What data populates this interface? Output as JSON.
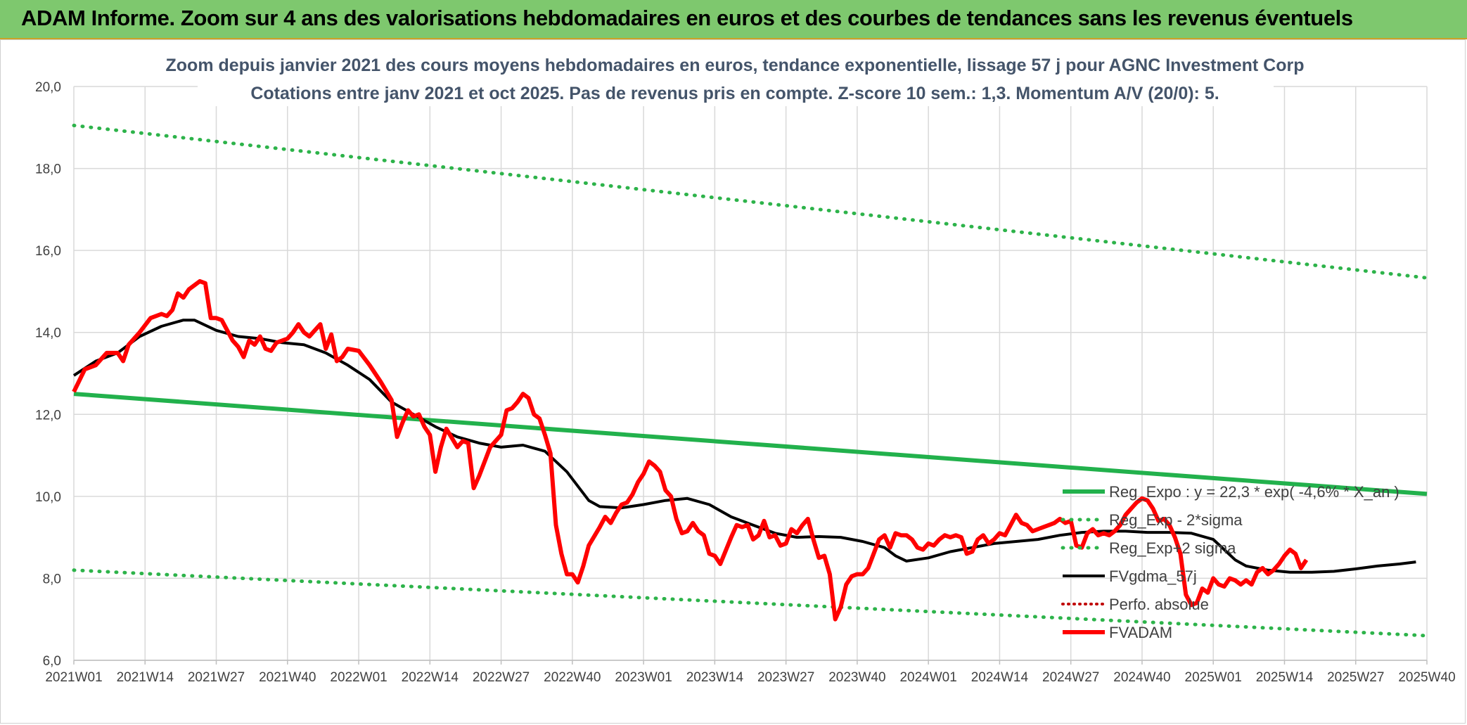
{
  "banner": {
    "title": "ADAM Informe. Zoom sur 4 ans des valorisations hebdomadaires en euros et des courbes de tendances sans les revenus éventuels"
  },
  "colors": {
    "banner_bg": "#7ec86e",
    "green": "#22b14c",
    "dotted_green": "#2db34a",
    "black": "#000000",
    "red": "#ff0000",
    "dotted_red": "#c00000"
  },
  "chart_data": {
    "type": "line",
    "title": "Zoom depuis janvier 2021 des cours moyens hebdomadaires en euros, tendance exponentielle, lissage 57 j pour AGNC Investment Corp",
    "subtitle": "Cotations entre janv 2021 et oct 2025. Pas de revenus pris en compte. Z-score 10 sem.: 1,3. Momentum A/V (20/0): 5.",
    "ylim": [
      6,
      20
    ],
    "y_ticks": [
      "6,0",
      "8,0",
      "10,0",
      "12,0",
      "14,0",
      "16,0",
      "18,0",
      "20,0"
    ],
    "x_ticks": [
      "2021W01",
      "2021W14",
      "2021W27",
      "2021W40",
      "2022W01",
      "2022W14",
      "2022W27",
      "2022W40",
      "2023W01",
      "2023W14",
      "2023W27",
      "2023W40",
      "2024W01",
      "2024W14",
      "2024W27",
      "2024W40",
      "2025W01",
      "2025W14",
      "2025W27",
      "2025W40"
    ],
    "x_range_weeks": [
      0,
      247
    ],
    "grid": true,
    "legend_position": "right",
    "series": [
      {
        "name": "Reg_Expo : y = 22,3 * exp( -4,6% * X_an )",
        "style": "solid-green",
        "points": [
          [
            0,
            12.5
          ],
          [
            247,
            10.06
          ]
        ]
      },
      {
        "name": "Reg_Exp - 2*sigma",
        "style": "dotted-green",
        "points": [
          [
            0,
            8.2
          ],
          [
            247,
            6.6
          ]
        ]
      },
      {
        "name": "Reg_Exp+2 sigma",
        "style": "dotted-green",
        "points": [
          [
            0,
            19.05
          ],
          [
            247,
            15.33
          ]
        ]
      },
      {
        "name": "FVgdma_57j",
        "style": "solid-black",
        "points": [
          [
            0,
            12.95
          ],
          [
            4,
            13.3
          ],
          [
            8,
            13.5
          ],
          [
            12,
            13.9
          ],
          [
            16,
            14.15
          ],
          [
            20,
            14.3
          ],
          [
            22,
            14.3
          ],
          [
            26,
            14.05
          ],
          [
            30,
            13.9
          ],
          [
            34,
            13.85
          ],
          [
            38,
            13.75
          ],
          [
            42,
            13.7
          ],
          [
            46,
            13.5
          ],
          [
            50,
            13.2
          ],
          [
            54,
            12.85
          ],
          [
            58,
            12.3
          ],
          [
            62,
            12.0
          ],
          [
            66,
            11.7
          ],
          [
            70,
            11.45
          ],
          [
            74,
            11.3
          ],
          [
            78,
            11.2
          ],
          [
            82,
            11.25
          ],
          [
            86,
            11.1
          ],
          [
            90,
            10.6
          ],
          [
            94,
            9.9
          ],
          [
            96,
            9.75
          ],
          [
            100,
            9.72
          ],
          [
            104,
            9.8
          ],
          [
            108,
            9.9
          ],
          [
            112,
            9.95
          ],
          [
            116,
            9.8
          ],
          [
            120,
            9.5
          ],
          [
            124,
            9.3
          ],
          [
            128,
            9.1
          ],
          [
            132,
            9.0
          ],
          [
            136,
            9.02
          ],
          [
            140,
            9.0
          ],
          [
            144,
            8.9
          ],
          [
            148,
            8.75
          ],
          [
            150,
            8.55
          ],
          [
            152,
            8.42
          ],
          [
            156,
            8.5
          ],
          [
            160,
            8.65
          ],
          [
            164,
            8.75
          ],
          [
            168,
            8.85
          ],
          [
            172,
            8.9
          ],
          [
            176,
            8.95
          ],
          [
            180,
            9.05
          ],
          [
            184,
            9.12
          ],
          [
            188,
            9.15
          ],
          [
            192,
            9.15
          ],
          [
            196,
            9.12
          ],
          [
            200,
            9.12
          ],
          [
            204,
            9.1
          ],
          [
            208,
            8.95
          ],
          [
            210,
            8.7
          ],
          [
            212,
            8.45
          ],
          [
            214,
            8.3
          ],
          [
            218,
            8.2
          ],
          [
            222,
            8.15
          ],
          [
            226,
            8.15
          ],
          [
            230,
            8.17
          ],
          [
            234,
            8.23
          ],
          [
            238,
            8.3
          ],
          [
            242,
            8.35
          ],
          [
            245,
            8.4
          ]
        ]
      },
      {
        "name": "Perfo. absolue",
        "style": "dotted-red",
        "points": []
      },
      {
        "name": "FVADAM",
        "style": "solid-red",
        "points": [
          [
            0,
            12.55
          ],
          [
            2,
            13.1
          ],
          [
            4,
            13.2
          ],
          [
            6,
            13.5
          ],
          [
            8,
            13.5
          ],
          [
            9,
            13.3
          ],
          [
            10,
            13.7
          ],
          [
            12,
            14.0
          ],
          [
            14,
            14.35
          ],
          [
            16,
            14.45
          ],
          [
            17,
            14.4
          ],
          [
            18,
            14.55
          ],
          [
            19,
            14.95
          ],
          [
            20,
            14.85
          ],
          [
            21,
            15.05
          ],
          [
            22,
            15.15
          ],
          [
            23,
            15.25
          ],
          [
            24,
            15.2
          ],
          [
            25,
            14.35
          ],
          [
            26,
            14.35
          ],
          [
            27,
            14.3
          ],
          [
            28,
            14.05
          ],
          [
            29,
            13.8
          ],
          [
            30,
            13.65
          ],
          [
            31,
            13.4
          ],
          [
            32,
            13.8
          ],
          [
            33,
            13.7
          ],
          [
            34,
            13.9
          ],
          [
            35,
            13.6
          ],
          [
            36,
            13.55
          ],
          [
            37,
            13.75
          ],
          [
            38,
            13.8
          ],
          [
            39,
            13.85
          ],
          [
            40,
            14.0
          ],
          [
            41,
            14.2
          ],
          [
            42,
            14.0
          ],
          [
            43,
            13.9
          ],
          [
            44,
            14.05
          ],
          [
            45,
            14.2
          ],
          [
            46,
            13.6
          ],
          [
            47,
            13.95
          ],
          [
            48,
            13.3
          ],
          [
            49,
            13.4
          ],
          [
            50,
            13.6
          ],
          [
            52,
            13.55
          ],
          [
            54,
            13.2
          ],
          [
            56,
            12.8
          ],
          [
            58,
            12.35
          ],
          [
            59,
            11.45
          ],
          [
            60,
            11.8
          ],
          [
            61,
            12.1
          ],
          [
            62,
            11.95
          ],
          [
            63,
            12.0
          ],
          [
            64,
            11.7
          ],
          [
            65,
            11.5
          ],
          [
            66,
            10.6
          ],
          [
            67,
            11.2
          ],
          [
            68,
            11.65
          ],
          [
            70,
            11.2
          ],
          [
            71,
            11.35
          ],
          [
            72,
            11.3
          ],
          [
            73,
            10.2
          ],
          [
            74,
            10.5
          ],
          [
            76,
            11.2
          ],
          [
            78,
            11.5
          ],
          [
            79,
            12.1
          ],
          [
            80,
            12.15
          ],
          [
            81,
            12.3
          ],
          [
            82,
            12.5
          ],
          [
            83,
            12.4
          ],
          [
            84,
            12.0
          ],
          [
            85,
            11.9
          ],
          [
            86,
            11.5
          ],
          [
            87,
            11.05
          ],
          [
            88,
            9.3
          ],
          [
            89,
            8.6
          ],
          [
            90,
            8.1
          ],
          [
            91,
            8.1
          ],
          [
            92,
            7.9
          ],
          [
            93,
            8.3
          ],
          [
            94,
            8.8
          ],
          [
            96,
            9.25
          ],
          [
            97,
            9.5
          ],
          [
            98,
            9.35
          ],
          [
            99,
            9.6
          ],
          [
            100,
            9.8
          ],
          [
            101,
            9.85
          ],
          [
            102,
            10.05
          ],
          [
            103,
            10.35
          ],
          [
            104,
            10.55
          ],
          [
            105,
            10.85
          ],
          [
            106,
            10.75
          ],
          [
            107,
            10.6
          ],
          [
            108,
            10.15
          ],
          [
            109,
            10.0
          ],
          [
            110,
            9.45
          ],
          [
            111,
            9.1
          ],
          [
            112,
            9.15
          ],
          [
            113,
            9.35
          ],
          [
            114,
            9.15
          ],
          [
            115,
            9.05
          ],
          [
            116,
            8.6
          ],
          [
            117,
            8.55
          ],
          [
            118,
            8.35
          ],
          [
            120,
            9.0
          ],
          [
            121,
            9.3
          ],
          [
            122,
            9.25
          ],
          [
            123,
            9.3
          ],
          [
            124,
            8.95
          ],
          [
            125,
            9.05
          ],
          [
            126,
            9.4
          ],
          [
            127,
            9.0
          ],
          [
            128,
            9.05
          ],
          [
            129,
            8.8
          ],
          [
            130,
            8.85
          ],
          [
            131,
            9.2
          ],
          [
            132,
            9.1
          ],
          [
            133,
            9.3
          ],
          [
            134,
            9.45
          ],
          [
            135,
            8.95
          ],
          [
            136,
            8.5
          ],
          [
            137,
            8.55
          ],
          [
            138,
            8.1
          ],
          [
            139,
            7.0
          ],
          [
            140,
            7.3
          ],
          [
            141,
            7.85
          ],
          [
            142,
            8.05
          ],
          [
            143,
            8.1
          ],
          [
            144,
            8.1
          ],
          [
            145,
            8.25
          ],
          [
            146,
            8.6
          ],
          [
            147,
            8.95
          ],
          [
            148,
            9.05
          ],
          [
            149,
            8.75
          ],
          [
            150,
            9.1
          ],
          [
            151,
            9.05
          ],
          [
            152,
            9.05
          ],
          [
            153,
            8.95
          ],
          [
            154,
            8.75
          ],
          [
            155,
            8.7
          ],
          [
            156,
            8.85
          ],
          [
            157,
            8.8
          ],
          [
            158,
            8.95
          ],
          [
            159,
            9.05
          ],
          [
            160,
            9.0
          ],
          [
            161,
            9.05
          ],
          [
            162,
            9.0
          ],
          [
            163,
            8.6
          ],
          [
            164,
            8.65
          ],
          [
            165,
            8.95
          ],
          [
            166,
            9.05
          ],
          [
            167,
            8.85
          ],
          [
            168,
            8.95
          ],
          [
            169,
            9.1
          ],
          [
            170,
            9.05
          ],
          [
            171,
            9.3
          ],
          [
            172,
            9.55
          ],
          [
            173,
            9.35
          ],
          [
            174,
            9.3
          ],
          [
            175,
            9.15
          ],
          [
            176,
            9.2
          ],
          [
            177,
            9.25
          ],
          [
            178,
            9.3
          ],
          [
            179,
            9.35
          ],
          [
            180,
            9.45
          ],
          [
            181,
            9.35
          ],
          [
            182,
            9.4
          ],
          [
            183,
            8.8
          ],
          [
            184,
            8.75
          ],
          [
            185,
            9.1
          ],
          [
            186,
            9.2
          ],
          [
            187,
            9.05
          ],
          [
            188,
            9.1
          ],
          [
            189,
            9.05
          ],
          [
            190,
            9.15
          ],
          [
            191,
            9.3
          ],
          [
            192,
            9.55
          ],
          [
            193,
            9.7
          ],
          [
            194,
            9.85
          ],
          [
            195,
            9.95
          ],
          [
            196,
            9.9
          ],
          [
            197,
            9.7
          ],
          [
            198,
            9.4
          ],
          [
            199,
            9.45
          ],
          [
            200,
            9.3
          ],
          [
            201,
            9.0
          ],
          [
            202,
            8.6
          ],
          [
            203,
            7.6
          ],
          [
            204,
            7.35
          ],
          [
            205,
            7.4
          ],
          [
            206,
            7.75
          ],
          [
            207,
            7.65
          ],
          [
            208,
            8.0
          ],
          [
            209,
            7.85
          ],
          [
            210,
            7.8
          ],
          [
            211,
            8.0
          ],
          [
            212,
            7.95
          ],
          [
            213,
            7.85
          ],
          [
            214,
            7.95
          ],
          [
            215,
            7.85
          ],
          [
            216,
            8.15
          ],
          [
            217,
            8.25
          ],
          [
            218,
            8.1
          ],
          [
            219,
            8.2
          ],
          [
            220,
            8.35
          ],
          [
            221,
            8.55
          ],
          [
            222,
            8.7
          ],
          [
            223,
            8.6
          ],
          [
            224,
            8.25
          ],
          [
            225,
            8.45
          ]
        ]
      }
    ]
  }
}
